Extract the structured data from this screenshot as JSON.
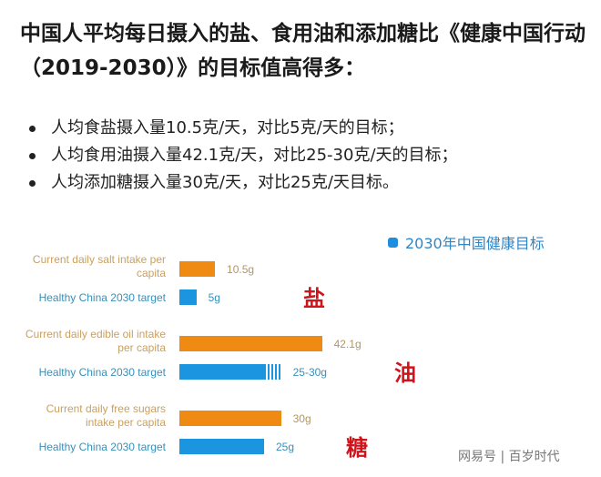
{
  "title": "中国人平均每日摄入的盐、食用油和添加糖比《健康中国行动（2019-2030）》的目标值高得多：",
  "bullets": [
    "人均食盐摄入量10.5克/天，对比5克/天的目标；",
    "人均食用油摄入量42.1克/天，对比25-30克/天的目标；",
    "人均添加糖摄入量30克/天，对比25克/天目标。"
  ],
  "watermark": "网易号 | 百岁时代",
  "chart_data": {
    "type": "bar",
    "orientation": "horizontal",
    "legend": "2030年中国健康目标",
    "legend_position": "top-right",
    "colors": {
      "current": "#ef8a12",
      "target": "#1b95df"
    },
    "groups": [
      {
        "name": "盐",
        "current_label": "Current daily salt intake per capita",
        "current": 10.5,
        "current_text": "10.5g",
        "target_label": "Healthy China 2030 target",
        "target": [
          5,
          5
        ],
        "target_text": "5g"
      },
      {
        "name": "油",
        "current_label": "Current daily edible oil intake per capita",
        "current": 42.1,
        "current_text": "42.1g",
        "target_label": "Healthy China 2030 target",
        "target": [
          25,
          30
        ],
        "target_text": "25-30g"
      },
      {
        "name": "糖",
        "current_label": "Current daily free sugars intake per capita",
        "current": 30,
        "current_text": "30g",
        "target_label": "Healthy China 2030 target",
        "target": [
          25,
          25
        ],
        "target_text": "25g"
      }
    ]
  }
}
